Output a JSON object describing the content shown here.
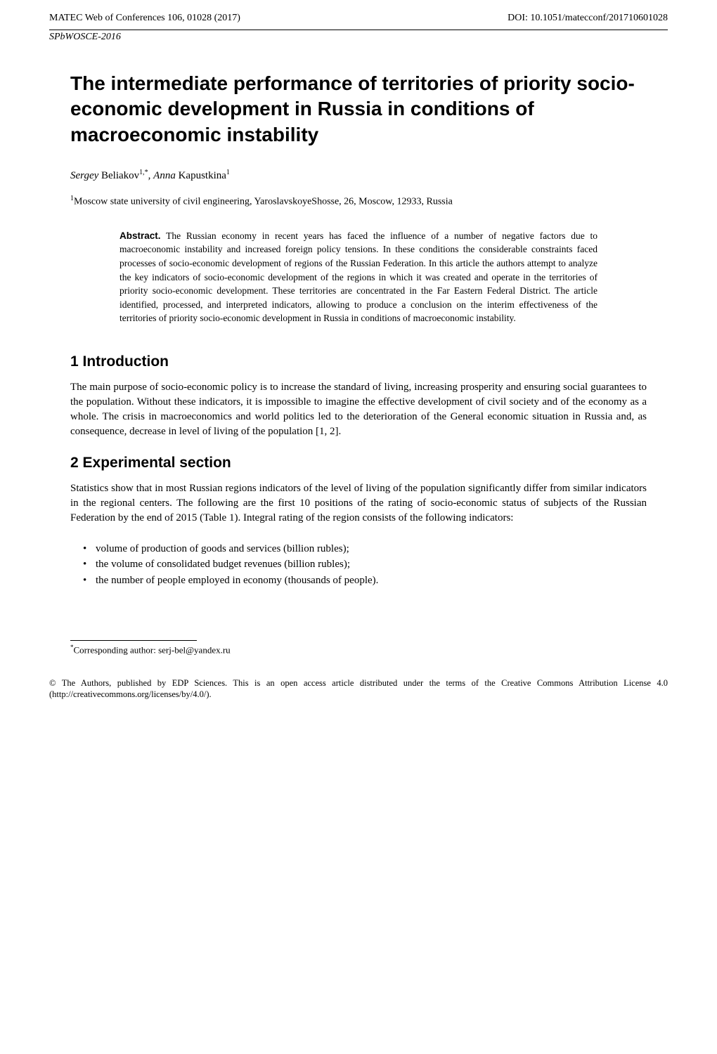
{
  "header": {
    "left": "MATEC Web of Conferences 106, 01028 (2017)",
    "right": "DOI: 10.1051/matecconf/201710601028",
    "series": "SPbWOSCE-2016"
  },
  "title": "The intermediate performance of territories of priority socio-economic development in Russia in conditions of macroeconomic instability",
  "authors": {
    "a1_first": "Sergey",
    "a1_last": " Beliakov",
    "a1_sup": "1,*",
    "sep": ", ",
    "a2_first": "Anna",
    "a2_last": " Kapustkina",
    "a2_sup": "1"
  },
  "affiliation": {
    "sup": "1",
    "text": "Moscow state university of civil engineering, YaroslavskoyeShosse, 26, Moscow, 12933, Russia"
  },
  "abstract": {
    "label": "Abstract.",
    "text": " The Russian economy in recent years has faced the influence of a number of negative factors due to macroeconomic instability and increased foreign policy tensions. In these conditions the considerable constraints faced processes of socio-economic development of regions of the Russian Federation. In this article the authors attempt to analyze the key indicators of socio-economic development of the regions in which it was created and operate in the territories of priority socio-economic development. These territories are concentrated in the Far Eastern Federal District. The article identified, processed, and interpreted indicators, allowing to produce a conclusion on the interim effectiveness of the territories of priority socio-economic development in Russia in conditions of macroeconomic instability."
  },
  "sections": {
    "s1": {
      "heading": "1 Introduction",
      "body": "The main purpose of socio-economic policy is to increase the standard of living, increasing prosperity and ensuring social guarantees to the population. Without these indicators, it is impossible to imagine the effective development of civil society and of the economy as a whole. The crisis in macroeconomics and world politics led to the deterioration of the General economic situation in Russia and, as consequence, decrease in level of living of the population [1, 2]."
    },
    "s2": {
      "heading": "2 Experimental section",
      "body": "Statistics show that in most Russian regions indicators of the level of living of the population significantly differ from similar indicators in the regional centers. The following are the first 10 positions of the rating of socio-economic status of subjects of the Russian Federation by the end of 2015 (Table 1). Integral rating of the region consists of the following indicators:",
      "bullets": [
        "volume of production of goods and services (billion rubles);",
        "the volume of consolidated budget revenues (billion rubles);",
        "the number of people employed in economy (thousands of people)."
      ]
    }
  },
  "footnote": {
    "sup": "*",
    "text": "Corresponding author: serj-bel@yandex.ru"
  },
  "license": "© The Authors, published by EDP Sciences. This is an open access article distributed under the terms of the Creative Commons Attribution License 4.0 (http://creativecommons.org/licenses/by/4.0/)."
}
